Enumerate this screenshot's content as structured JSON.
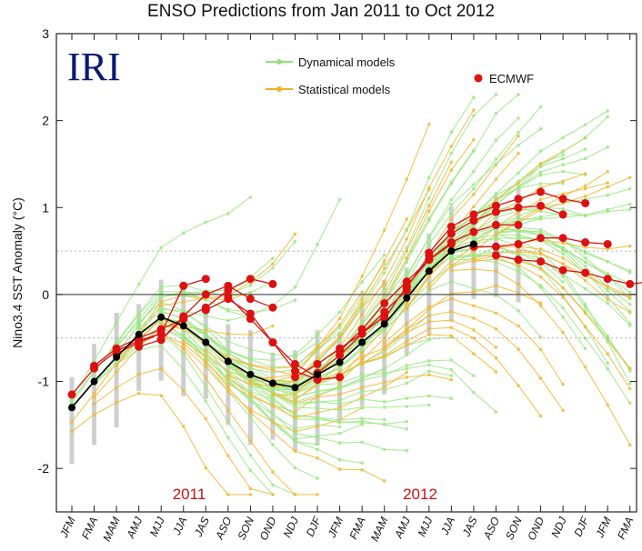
{
  "chart_data": {
    "type": "line",
    "title": "ENSO Predictions from Jan 2011 to Oct 2012",
    "ylabel": "Nino3.4 SST Anomaly (°C)",
    "xlabel": "",
    "ylim": [
      -2.5,
      3
    ],
    "yticks": [
      -2,
      -1,
      0,
      1,
      2,
      3
    ],
    "grid": "dotted lines at -0.5 and 0.5, solid line at 0",
    "categories": [
      "JFM",
      "FMA",
      "MAM",
      "AMJ",
      "MJJ",
      "JJA",
      "JAS",
      "ASO",
      "SON",
      "OND",
      "NDJ",
      "DJF",
      "JFM",
      "FMA",
      "MAM",
      "AMJ",
      "MJJ",
      "JJA",
      "JAS",
      "ASO",
      "SON",
      "OND",
      "NDJ",
      "DJF",
      "JFM",
      "FMA"
    ],
    "year_labels": [
      "2011",
      "2012"
    ],
    "logo": "IRI",
    "legend": [
      "Dynamical models",
      "Statistical models",
      "ECMWF"
    ],
    "legend_position": "top",
    "colors": {
      "dynamical": "#8fe37a",
      "statistical": "#f0b020",
      "ecmwf": "#dd1111",
      "observed": "#000000",
      "year_label": "#cc1111",
      "logo": "#0a1a6e"
    },
    "observed": {
      "x": [
        0,
        1,
        2,
        3,
        4,
        5,
        6,
        7,
        8,
        9,
        10,
        11,
        12,
        13,
        14,
        15,
        16,
        17,
        18
      ],
      "y": [
        -1.3,
        -1.0,
        -0.72,
        -0.46,
        -0.26,
        -0.36,
        -0.55,
        -0.77,
        -0.92,
        -1.02,
        -1.07,
        -0.92,
        -0.78,
        -0.55,
        -0.34,
        -0.04,
        0.27,
        0.5,
        0.58
      ]
    },
    "ecmwf": [
      {
        "start": 0,
        "values": [
          -1.15,
          -0.85,
          -0.65,
          -0.53,
          -0.45
        ]
      },
      {
        "start": 1,
        "values": [
          -0.82,
          -0.62,
          -0.5,
          -0.4,
          -0.28
        ]
      },
      {
        "start": 2,
        "values": [
          -0.68,
          -0.55,
          -0.45,
          0.1,
          0.18
        ]
      },
      {
        "start": 3,
        "values": [
          -0.6,
          -0.52,
          -0.28,
          -0.15,
          0.05,
          0.18,
          0.12
        ]
      },
      {
        "start": 4,
        "values": [
          -0.52,
          -0.25,
          0.0,
          0.1,
          -0.05,
          -0.15
        ]
      },
      {
        "start": 6,
        "values": [
          -0.18,
          -0.05,
          -0.22,
          -0.55,
          -0.8,
          -0.95
        ]
      },
      {
        "start": 7,
        "values": [
          -0.02,
          -0.28,
          -0.55,
          -0.88,
          -0.98,
          -0.95
        ]
      },
      {
        "start": 10,
        "values": [
          -0.95,
          -0.8,
          -0.62,
          -0.45,
          -0.25
        ]
      },
      {
        "start": 11,
        "values": [
          -0.9,
          -0.7,
          -0.45,
          -0.2,
          0.05
        ]
      },
      {
        "start": 12,
        "values": [
          -0.65,
          -0.4,
          -0.1,
          0.15,
          0.4,
          0.58
        ]
      },
      {
        "start": 14,
        "values": [
          -0.28,
          0.1,
          0.4,
          0.6,
          0.72,
          0.8,
          0.8
        ]
      },
      {
        "start": 15,
        "values": [
          0.08,
          0.45,
          0.7,
          0.85,
          0.95,
          1.0,
          1.02,
          0.92
        ]
      },
      {
        "start": 16,
        "values": [
          0.48,
          0.78,
          0.92,
          1.02,
          1.1,
          1.18,
          1.1,
          1.05
        ]
      },
      {
        "start": 18,
        "values": [
          0.55,
          0.55,
          0.58,
          0.65,
          0.65,
          0.6,
          0.58
        ]
      },
      {
        "start": 19,
        "values": [
          0.45,
          0.4,
          0.38,
          0.28,
          0.25,
          0.18,
          0.12,
          0.15
        ]
      }
    ]
  }
}
